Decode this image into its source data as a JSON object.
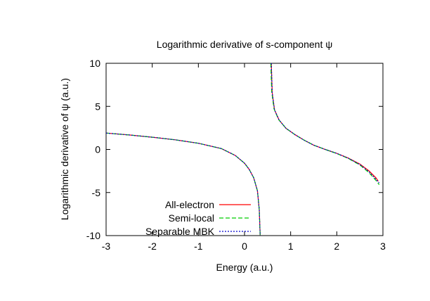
{
  "chart_data": {
    "type": "line",
    "title": "Logarithmic derivative of s-component ψ",
    "xlabel": "Energy (a.u.)",
    "ylabel": "Logarithmic derivative of ψ (a.u.)",
    "xlim": [
      -3,
      3
    ],
    "ylim": [
      -10,
      10
    ],
    "xticks": [
      -3,
      -2,
      -1,
      0,
      1,
      2,
      3
    ],
    "yticks": [
      -10,
      -5,
      0,
      5,
      10
    ],
    "grid": false,
    "legend_position": "bottom-left",
    "series": [
      {
        "name": "All-electron",
        "color": "#ff0000",
        "dash": "solid",
        "branches": [
          [
            [
              -3.0,
              1.9
            ],
            [
              -2.5,
              1.68
            ],
            [
              -2.0,
              1.42
            ],
            [
              -1.5,
              1.12
            ],
            [
              -1.0,
              0.72
            ],
            [
              -0.5,
              0.1
            ],
            [
              -0.2,
              -0.7
            ],
            [
              0.0,
              -1.6
            ],
            [
              0.1,
              -2.3
            ],
            [
              0.2,
              -3.3
            ],
            [
              0.28,
              -4.8
            ],
            [
              0.32,
              -7.0
            ],
            [
              0.34,
              -10.0
            ]
          ],
          [
            [
              0.58,
              10.0
            ],
            [
              0.6,
              6.6
            ],
            [
              0.65,
              4.6
            ],
            [
              0.75,
              3.4
            ],
            [
              0.9,
              2.45
            ],
            [
              1.1,
              1.7
            ],
            [
              1.3,
              1.05
            ],
            [
              1.5,
              0.5
            ],
            [
              1.75,
              0.0
            ],
            [
              2.0,
              -0.45
            ],
            [
              2.25,
              -1.0
            ],
            [
              2.5,
              -1.7
            ],
            [
              2.7,
              -2.5
            ],
            [
              2.85,
              -3.3
            ],
            [
              2.9,
              -3.7
            ]
          ]
        ]
      },
      {
        "name": "Semi-local",
        "color": "#00cc00",
        "dash": "6,3",
        "branches": [
          [
            [
              -3.0,
              1.9
            ],
            [
              -2.5,
              1.68
            ],
            [
              -2.0,
              1.42
            ],
            [
              -1.5,
              1.12
            ],
            [
              -1.0,
              0.72
            ],
            [
              -0.5,
              0.1
            ],
            [
              -0.2,
              -0.7
            ],
            [
              0.0,
              -1.6
            ],
            [
              0.1,
              -2.3
            ],
            [
              0.2,
              -3.3
            ],
            [
              0.28,
              -4.8
            ],
            [
              0.32,
              -7.0
            ],
            [
              0.34,
              -10.0
            ]
          ],
          [
            [
              0.57,
              10.0
            ],
            [
              0.59,
              6.7
            ],
            [
              0.64,
              4.7
            ],
            [
              0.74,
              3.45
            ],
            [
              0.9,
              2.45
            ],
            [
              1.1,
              1.7
            ],
            [
              1.3,
              1.05
            ],
            [
              1.5,
              0.5
            ],
            [
              1.75,
              0.0
            ],
            [
              2.0,
              -0.47
            ],
            [
              2.25,
              -1.05
            ],
            [
              2.5,
              -1.8
            ],
            [
              2.7,
              -2.7
            ],
            [
              2.85,
              -3.6
            ],
            [
              2.92,
              -4.1
            ]
          ]
        ]
      },
      {
        "name": "Separable MBK",
        "color": "#0000cc",
        "dash": "2,2",
        "branches": [
          [
            [
              -3.0,
              1.9
            ],
            [
              -2.5,
              1.68
            ],
            [
              -2.0,
              1.42
            ],
            [
              -1.5,
              1.12
            ],
            [
              -1.0,
              0.72
            ],
            [
              -0.5,
              0.1
            ],
            [
              -0.2,
              -0.7
            ],
            [
              0.0,
              -1.6
            ],
            [
              0.1,
              -2.3
            ],
            [
              0.2,
              -3.3
            ],
            [
              0.28,
              -4.8
            ],
            [
              0.32,
              -7.0
            ],
            [
              0.34,
              -10.0
            ]
          ],
          [
            [
              0.58,
              10.0
            ],
            [
              0.6,
              6.6
            ],
            [
              0.65,
              4.6
            ],
            [
              0.75,
              3.4
            ],
            [
              0.9,
              2.45
            ],
            [
              1.1,
              1.7
            ],
            [
              1.3,
              1.05
            ],
            [
              1.5,
              0.5
            ],
            [
              1.75,
              0.0
            ],
            [
              2.0,
              -0.46
            ],
            [
              2.25,
              -1.02
            ],
            [
              2.5,
              -1.75
            ],
            [
              2.7,
              -2.6
            ],
            [
              2.85,
              -3.45
            ],
            [
              2.92,
              -3.9
            ]
          ]
        ]
      }
    ]
  }
}
